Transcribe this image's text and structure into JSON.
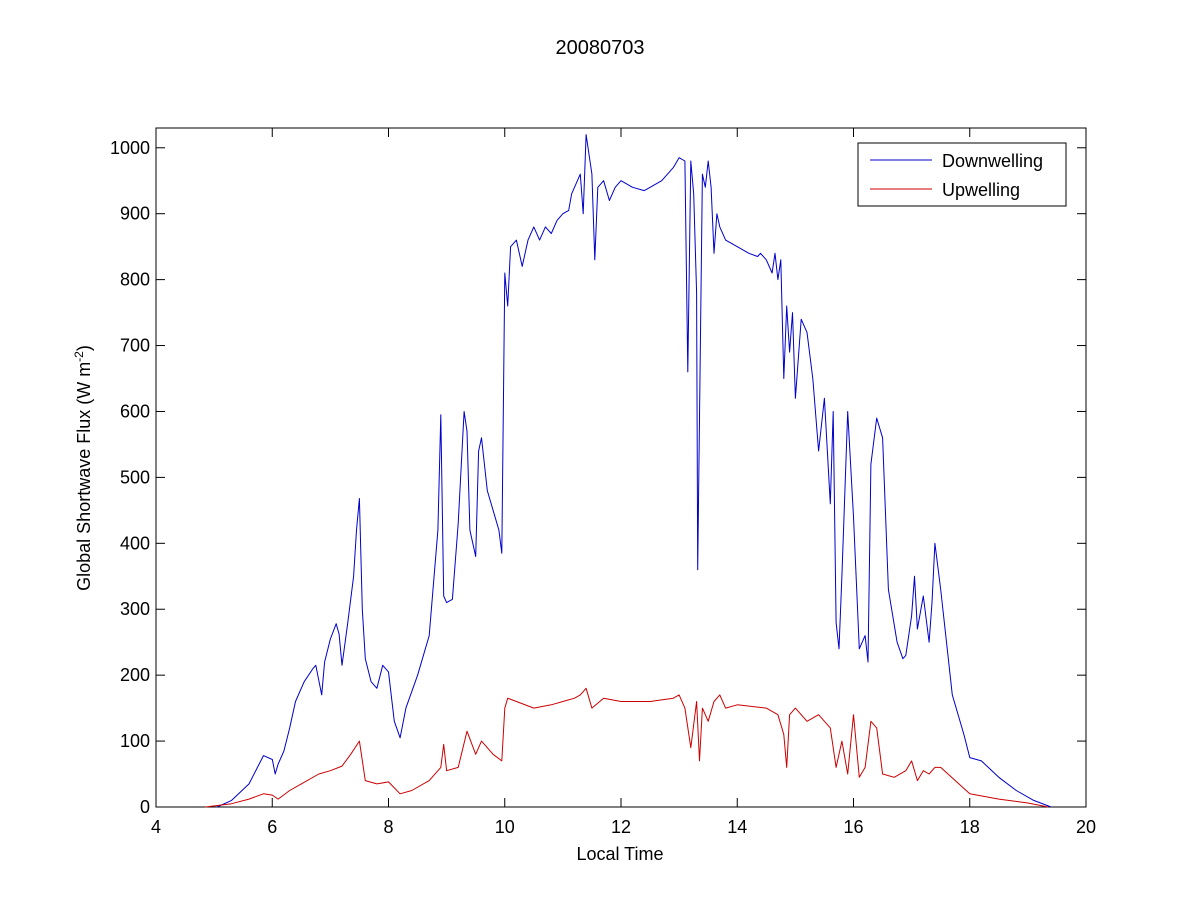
{
  "chart_data": {
    "type": "line",
    "title": "20080703",
    "xlabel": "Local Time",
    "ylabel": "Global Shortwave Flux (W m",
    "ylabel_sup": "-2",
    "ylabel_close": ")",
    "xlim": [
      4,
      20
    ],
    "ylim": [
      0,
      1030
    ],
    "xticks": [
      4,
      6,
      8,
      10,
      12,
      14,
      16,
      18,
      20
    ],
    "yticks": [
      0,
      100,
      200,
      300,
      400,
      500,
      600,
      700,
      800,
      900,
      1000
    ],
    "grid": false,
    "legend_position": "top-right",
    "series": [
      {
        "name": "Downwelling",
        "color": "#0000cc",
        "x": [
          5.05,
          5.3,
          5.6,
          5.85,
          6.0,
          6.05,
          6.1,
          6.2,
          6.3,
          6.4,
          6.55,
          6.7,
          6.75,
          6.85,
          6.9,
          7.0,
          7.1,
          7.15,
          7.2,
          7.3,
          7.4,
          7.45,
          7.5,
          7.55,
          7.6,
          7.7,
          7.8,
          7.9,
          8.0,
          8.1,
          8.2,
          8.3,
          8.5,
          8.7,
          8.85,
          8.9,
          8.95,
          9.0,
          9.1,
          9.2,
          9.3,
          9.35,
          9.4,
          9.5,
          9.55,
          9.6,
          9.7,
          9.8,
          9.9,
          9.95,
          10.0,
          10.05,
          10.1,
          10.2,
          10.3,
          10.4,
          10.5,
          10.6,
          10.7,
          10.8,
          10.9,
          11.0,
          11.1,
          11.15,
          11.2,
          11.3,
          11.35,
          11.4,
          11.5,
          11.55,
          11.6,
          11.7,
          11.8,
          11.9,
          12.0,
          12.2,
          12.4,
          12.5,
          12.7,
          12.9,
          13.0,
          13.1,
          13.15,
          13.2,
          13.25,
          13.3,
          13.32,
          13.4,
          13.45,
          13.5,
          13.55,
          13.6,
          13.65,
          13.7,
          13.8,
          14.0,
          14.2,
          14.35,
          14.4,
          14.5,
          14.6,
          14.65,
          14.7,
          14.75,
          14.8,
          14.85,
          14.9,
          14.95,
          15.0,
          15.1,
          15.2,
          15.3,
          15.4,
          15.5,
          15.6,
          15.65,
          15.7,
          15.75,
          15.8,
          15.9,
          16.0,
          16.1,
          16.2,
          16.25,
          16.3,
          16.4,
          16.5,
          16.6,
          16.75,
          16.85,
          16.9,
          17.0,
          17.05,
          17.1,
          17.2,
          17.3,
          17.35,
          17.4,
          17.5,
          17.7,
          17.9,
          18.0,
          18.2,
          18.5,
          18.8,
          19.1,
          19.4
        ],
        "y": [
          0,
          10,
          35,
          78,
          72,
          50,
          65,
          85,
          120,
          160,
          190,
          210,
          215,
          170,
          220,
          255,
          278,
          262,
          215,
          280,
          350,
          420,
          468,
          300,
          225,
          190,
          180,
          215,
          205,
          130,
          105,
          150,
          200,
          260,
          420,
          595,
          320,
          310,
          315,
          430,
          600,
          570,
          420,
          380,
          540,
          560,
          480,
          450,
          420,
          385,
          810,
          760,
          850,
          860,
          820,
          860,
          880,
          860,
          880,
          870,
          890,
          900,
          905,
          930,
          940,
          960,
          900,
          1020,
          960,
          830,
          940,
          950,
          920,
          940,
          950,
          940,
          935,
          940,
          950,
          970,
          985,
          980,
          660,
          980,
          930,
          780,
          360,
          960,
          940,
          980,
          940,
          840,
          900,
          880,
          860,
          850,
          840,
          835,
          840,
          830,
          810,
          840,
          800,
          830,
          650,
          760,
          690,
          750,
          620,
          740,
          720,
          650,
          540,
          620,
          460,
          600,
          280,
          240,
          350,
          600,
          440,
          240,
          260,
          220,
          520,
          590,
          560,
          330,
          250,
          225,
          230,
          290,
          350,
          270,
          320,
          250,
          310,
          400,
          330,
          170,
          110,
          75,
          70,
          45,
          25,
          10,
          0
        ]
      },
      {
        "name": "Upwelling",
        "color": "#cc0000",
        "x": [
          4.85,
          5.3,
          5.6,
          5.85,
          6.0,
          6.1,
          6.3,
          6.5,
          6.8,
          7.0,
          7.2,
          7.35,
          7.5,
          7.6,
          7.8,
          8.0,
          8.2,
          8.4,
          8.7,
          8.9,
          8.95,
          9.0,
          9.2,
          9.35,
          9.5,
          9.6,
          9.8,
          9.95,
          10.0,
          10.05,
          10.2,
          10.5,
          10.8,
          11.0,
          11.2,
          11.3,
          11.4,
          11.5,
          11.7,
          12.0,
          12.5,
          12.9,
          13.0,
          13.1,
          13.2,
          13.3,
          13.35,
          13.4,
          13.5,
          13.6,
          13.7,
          13.8,
          14.0,
          14.5,
          14.7,
          14.8,
          14.85,
          14.9,
          15.0,
          15.2,
          15.4,
          15.6,
          15.7,
          15.8,
          15.9,
          16.0,
          16.1,
          16.2,
          16.3,
          16.4,
          16.5,
          16.7,
          16.9,
          17.0,
          17.1,
          17.2,
          17.3,
          17.4,
          17.5,
          18.0,
          18.5,
          19.0,
          19.35
        ],
        "y": [
          0,
          5,
          12,
          20,
          18,
          12,
          25,
          35,
          50,
          55,
          62,
          80,
          100,
          40,
          35,
          38,
          20,
          25,
          40,
          60,
          95,
          55,
          60,
          115,
          80,
          100,
          80,
          70,
          150,
          165,
          160,
          150,
          155,
          160,
          165,
          170,
          180,
          150,
          165,
          160,
          160,
          165,
          170,
          150,
          90,
          160,
          70,
          150,
          130,
          160,
          170,
          150,
          155,
          150,
          140,
          110,
          60,
          140,
          150,
          130,
          140,
          120,
          60,
          100,
          50,
          140,
          45,
          60,
          130,
          120,
          50,
          45,
          55,
          70,
          40,
          55,
          50,
          60,
          60,
          20,
          12,
          6,
          0
        ]
      }
    ]
  }
}
